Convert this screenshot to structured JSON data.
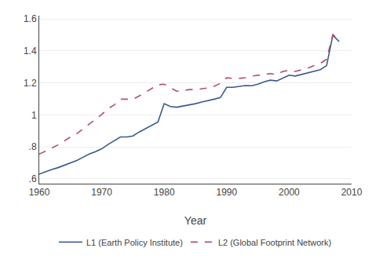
{
  "chart_data": {
    "type": "line",
    "xlabel": "Year",
    "xlim": [
      1960,
      2010
    ],
    "xticks": [
      1960,
      1970,
      1980,
      1990,
      2000,
      2010
    ],
    "ylim": [
      0.57,
      1.62
    ],
    "yticks": [
      {
        "value": 0.6,
        "label": ".6"
      },
      {
        "value": 0.8,
        "label": ".8"
      },
      1,
      1.2,
      1.4,
      1.6
    ],
    "grid": "y",
    "legend": "bottom",
    "x": [
      1960,
      1961,
      1962,
      1963,
      1964,
      1965,
      1966,
      1967,
      1968,
      1969,
      1970,
      1971,
      1972,
      1973,
      1974,
      1975,
      1976,
      1977,
      1978,
      1979,
      1980,
      1981,
      1982,
      1983,
      1984,
      1985,
      1986,
      1987,
      1988,
      1989,
      1990,
      1991,
      1992,
      1993,
      1994,
      1995,
      1996,
      1997,
      1998,
      1999,
      2000,
      2001,
      2002,
      2003,
      2004,
      2005,
      2006,
      2007,
      2008
    ],
    "series": [
      {
        "name": "L1 (Earth Policy Institute)",
        "color": "#3a5a8c",
        "line_style": "solid",
        "values": [
          0.63,
          0.645,
          0.658,
          0.67,
          0.685,
          0.7,
          0.715,
          0.735,
          0.755,
          0.77,
          0.788,
          0.815,
          0.84,
          0.862,
          0.862,
          0.868,
          0.893,
          0.913,
          0.935,
          0.955,
          1.07,
          1.052,
          1.048,
          1.055,
          1.06,
          1.07,
          1.08,
          1.088,
          1.098,
          1.108,
          1.172,
          1.172,
          1.178,
          1.183,
          1.182,
          1.192,
          1.207,
          1.217,
          1.212,
          1.23,
          1.248,
          1.243,
          1.253,
          1.263,
          1.273,
          1.283,
          1.308,
          1.498,
          1.458
        ]
      },
      {
        "name": "L2 (Global Footprint Network)",
        "color": "#b05070",
        "line_style": "dashed",
        "values": [
          0.755,
          0.772,
          0.792,
          0.812,
          0.838,
          0.862,
          0.882,
          0.912,
          0.942,
          0.972,
          1.002,
          1.038,
          1.062,
          1.098,
          1.098,
          1.098,
          1.118,
          1.142,
          1.162,
          1.188,
          1.192,
          1.168,
          1.148,
          1.152,
          1.158,
          1.158,
          1.162,
          1.168,
          1.178,
          1.198,
          1.232,
          1.228,
          1.228,
          1.232,
          1.242,
          1.248,
          1.252,
          1.258,
          1.252,
          1.272,
          1.278,
          1.272,
          1.282,
          1.292,
          1.308,
          1.322,
          1.348,
          1.502,
          1.468
        ]
      }
    ]
  }
}
